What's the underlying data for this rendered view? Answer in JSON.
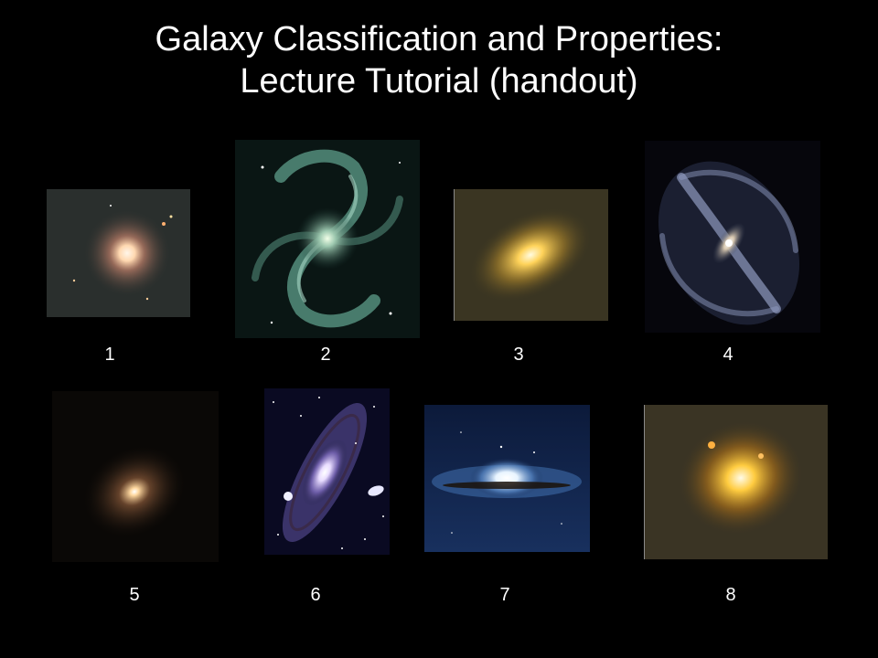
{
  "slide": {
    "title_line1": "Galaxy Classification and Properties:",
    "title_line2": "Lecture Tutorial (handout)"
  },
  "galaxies": [
    {
      "label": "1",
      "kind": "elliptical-round"
    },
    {
      "label": "2",
      "kind": "spiral-face-on"
    },
    {
      "label": "3",
      "kind": "elliptical-elongated"
    },
    {
      "label": "4",
      "kind": "barred-spiral"
    },
    {
      "label": "5",
      "kind": "elliptical-faint"
    },
    {
      "label": "6",
      "kind": "spiral-inclined"
    },
    {
      "label": "7",
      "kind": "edge-on-sombrero"
    },
    {
      "label": "8",
      "kind": "elliptical-bright"
    }
  ]
}
